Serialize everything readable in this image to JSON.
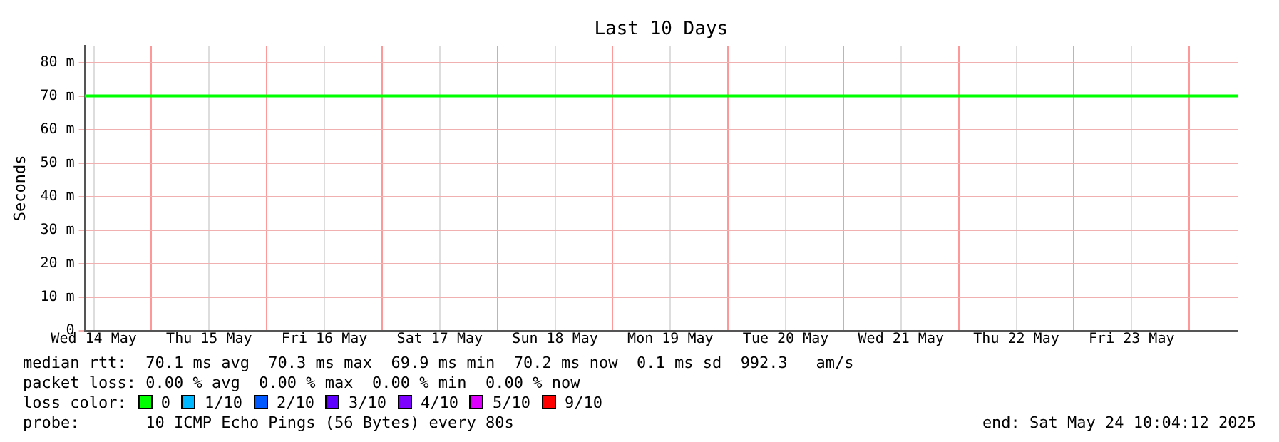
{
  "chart_data": {
    "type": "line",
    "title": "Last 10 Days",
    "ylabel": "Seconds",
    "legend_title": "loss color:",
    "legend": "bottom",
    "grid": true,
    "marker": "none",
    "line_style": "solid",
    "x": [
      "2025-05-14T10:04",
      "2025-05-14T12:00",
      "2025-05-14T18:00",
      "2025-05-15T00:00",
      "2025-05-15T06:00",
      "2025-05-15T12:00",
      "2025-05-15T18:00",
      "2025-05-16T00:00",
      "2025-05-16T06:00",
      "2025-05-16T12:00",
      "2025-05-16T18:00",
      "2025-05-17T00:00",
      "2025-05-17T06:00",
      "2025-05-17T12:00",
      "2025-05-17T18:00",
      "2025-05-18T00:00",
      "2025-05-18T06:00",
      "2025-05-18T12:00",
      "2025-05-18T18:00",
      "2025-05-19T00:00",
      "2025-05-19T06:00",
      "2025-05-19T12:00",
      "2025-05-19T18:00",
      "2025-05-20T00:00",
      "2025-05-20T06:00",
      "2025-05-20T12:00",
      "2025-05-20T18:00",
      "2025-05-21T00:00",
      "2025-05-21T06:00",
      "2025-05-21T12:00",
      "2025-05-21T18:00",
      "2025-05-22T00:00",
      "2025-05-22T06:00",
      "2025-05-22T12:00",
      "2025-05-22T18:00",
      "2025-05-23T00:00",
      "2025-05-23T06:00",
      "2025-05-23T12:00",
      "2025-05-23T18:00",
      "2025-05-24T00:00",
      "2025-05-24T06:00",
      "2025-05-24T10:04"
    ],
    "series": [
      {
        "name": "0",
        "color": "#00ff00",
        "values": [
          70,
          70,
          70,
          70,
          70,
          70,
          70,
          70,
          70,
          70,
          70,
          70,
          70,
          70,
          70,
          70,
          70,
          70,
          70,
          70,
          70,
          70,
          70,
          70,
          70,
          70,
          70,
          70,
          70,
          70,
          70,
          70,
          70,
          70,
          70,
          70,
          70,
          70,
          70,
          70,
          70,
          70
        ]
      },
      {
        "name": "1/10",
        "color": "#00b8ff",
        "values": [
          null,
          null,
          null,
          null,
          null,
          null,
          null,
          null,
          null,
          null,
          null,
          null,
          null,
          null,
          null,
          null,
          null,
          null,
          null,
          null,
          null,
          null,
          null,
          null,
          null,
          null,
          null,
          null,
          null,
          null,
          null,
          null,
          null,
          null,
          null,
          null,
          null,
          null,
          null,
          null,
          null,
          null
        ]
      },
      {
        "name": "2/10",
        "color": "#0059ff",
        "values": [
          null,
          null,
          null,
          null,
          null,
          null,
          null,
          null,
          null,
          null,
          null,
          null,
          null,
          null,
          null,
          null,
          null,
          null,
          null,
          null,
          null,
          null,
          null,
          null,
          null,
          null,
          null,
          null,
          null,
          null,
          null,
          null,
          null,
          null,
          null,
          null,
          null,
          null,
          null,
          null,
          null,
          null
        ]
      },
      {
        "name": "3/10",
        "color": "#5e00ff",
        "values": [
          null,
          null,
          null,
          null,
          null,
          null,
          null,
          null,
          null,
          null,
          null,
          null,
          null,
          null,
          null,
          null,
          null,
          null,
          null,
          null,
          null,
          null,
          null,
          null,
          null,
          null,
          null,
          null,
          null,
          null,
          null,
          null,
          null,
          null,
          null,
          null,
          null,
          null,
          null,
          null,
          null,
          null
        ]
      },
      {
        "name": "4/10",
        "color": "#7e00ff",
        "values": [
          null,
          null,
          null,
          null,
          null,
          null,
          null,
          null,
          null,
          null,
          null,
          null,
          null,
          null,
          null,
          null,
          null,
          null,
          null,
          null,
          null,
          null,
          null,
          null,
          null,
          null,
          null,
          null,
          null,
          null,
          null,
          null,
          null,
          null,
          null,
          null,
          null,
          null,
          null,
          null,
          null,
          null
        ]
      },
      {
        "name": "5/10",
        "color": "#dd00ff",
        "values": [
          null,
          null,
          null,
          null,
          null,
          null,
          null,
          null,
          null,
          null,
          null,
          null,
          null,
          null,
          null,
          null,
          null,
          null,
          null,
          null,
          null,
          null,
          null,
          null,
          null,
          null,
          null,
          null,
          null,
          null,
          null,
          null,
          null,
          null,
          null,
          null,
          null,
          null,
          null,
          null,
          null,
          null
        ]
      },
      {
        "name": "9/10",
        "color": "#ff0000",
        "values": [
          null,
          null,
          null,
          null,
          null,
          null,
          null,
          null,
          null,
          null,
          null,
          null,
          null,
          null,
          null,
          null,
          null,
          null,
          null,
          null,
          null,
          null,
          null,
          null,
          null,
          null,
          null,
          null,
          null,
          null,
          null,
          null,
          null,
          null,
          null,
          null,
          null,
          null,
          null,
          null,
          null,
          null
        ]
      }
    ],
    "xlim": [
      "2025-05-14T10:04",
      "2025-05-24T10:04"
    ],
    "xticks": [
      {
        "value": "2025-05-14T12:00",
        "label": "Wed 14 May"
      },
      {
        "value": "2025-05-15T00:00",
        "label": null
      },
      {
        "value": "2025-05-15T12:00",
        "label": "Thu 15 May"
      },
      {
        "value": "2025-05-16T00:00",
        "label": null
      },
      {
        "value": "2025-05-16T12:00",
        "label": "Fri 16 May"
      },
      {
        "value": "2025-05-17T00:00",
        "label": null
      },
      {
        "value": "2025-05-17T12:00",
        "label": "Sat 17 May"
      },
      {
        "value": "2025-05-18T00:00",
        "label": null
      },
      {
        "value": "2025-05-18T12:00",
        "label": "Sun 18 May"
      },
      {
        "value": "2025-05-19T00:00",
        "label": null
      },
      {
        "value": "2025-05-19T12:00",
        "label": "Mon 19 May"
      },
      {
        "value": "2025-05-20T00:00",
        "label": null
      },
      {
        "value": "2025-05-20T12:00",
        "label": "Tue 20 May"
      },
      {
        "value": "2025-05-21T00:00",
        "label": null
      },
      {
        "value": "2025-05-21T12:00",
        "label": "Wed 21 May"
      },
      {
        "value": "2025-05-22T00:00",
        "label": null
      },
      {
        "value": "2025-05-22T12:00",
        "label": "Thu 22 May"
      },
      {
        "value": "2025-05-23T00:00",
        "label": null
      },
      {
        "value": "2025-05-23T12:00",
        "label": "Fri 23 May"
      },
      {
        "value": "2025-05-24T00:00",
        "label": null
      }
    ],
    "ylim": [
      0,
      85
    ],
    "yticks": [
      0,
      {
        "value": 10,
        "label": "10 m"
      },
      {
        "value": 20,
        "label": "20 m"
      },
      {
        "value": 30,
        "label": "30 m"
      },
      {
        "value": 40,
        "label": "40 m"
      },
      {
        "value": 50,
        "label": "50 m"
      },
      {
        "value": 60,
        "label": "60 m"
      },
      {
        "value": 70,
        "label": "70 m"
      },
      {
        "value": 80,
        "label": "80 m"
      }
    ],
    "annotations": [
      "median rtt:  70.1 ms avg  70.3 ms max  69.9 ms min  70.2 ms now  0.1 ms sd  992.3   am/s",
      "packet loss: 0.00 % avg  0.00 % max  0.00 % min  0.00 % now",
      "probe:       10 ICMP Echo Pings (56 Bytes) every 80s",
      "end: Sat May 24 10:04:12 2025"
    ]
  }
}
